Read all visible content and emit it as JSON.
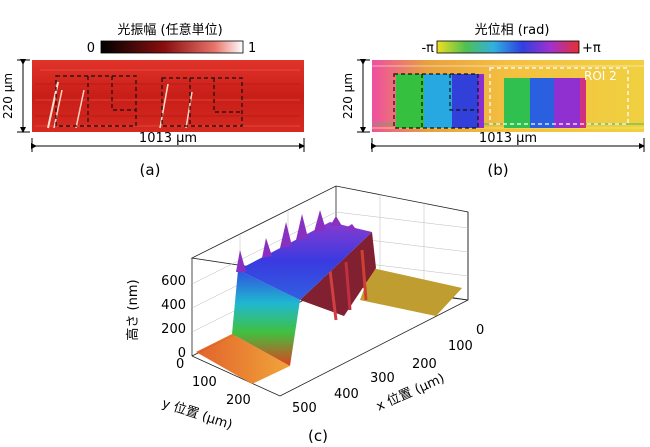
{
  "panel_a": {
    "colorbar_title": "光振幅 (任意単位)",
    "cbar_min": "0",
    "cbar_max": "1",
    "height_label": "220 μm",
    "width_label": "1013 μm",
    "caption": "(a)"
  },
  "panel_b": {
    "colorbar_title": "光位相 (rad)",
    "cbar_min": "-π",
    "cbar_max": "+π",
    "roi_label": "ROI 2",
    "height_label": "220 μm",
    "width_label": "1013 μm",
    "caption": "(b)"
  },
  "panel_c": {
    "z_axis_label": "高さ (nm)",
    "z_ticks": [
      "0",
      "200",
      "400",
      "600"
    ],
    "y_axis_label": "y 位置 (μm)",
    "y_ticks": [
      "0",
      "100",
      "200"
    ],
    "x_axis_label": "x 位置 (μm)",
    "x_ticks": [
      "0",
      "100",
      "200",
      "300",
      "400",
      "500"
    ],
    "caption": "(c)"
  },
  "colors": {
    "amplitude_high": "#d8241c",
    "amplitude_low": "#000000",
    "phase_scale": [
      "#f4d72a",
      "#3fbf4a",
      "#2aa7d6",
      "#2f3dd8",
      "#8a2fd6",
      "#e0338a",
      "#e8402f"
    ]
  }
}
